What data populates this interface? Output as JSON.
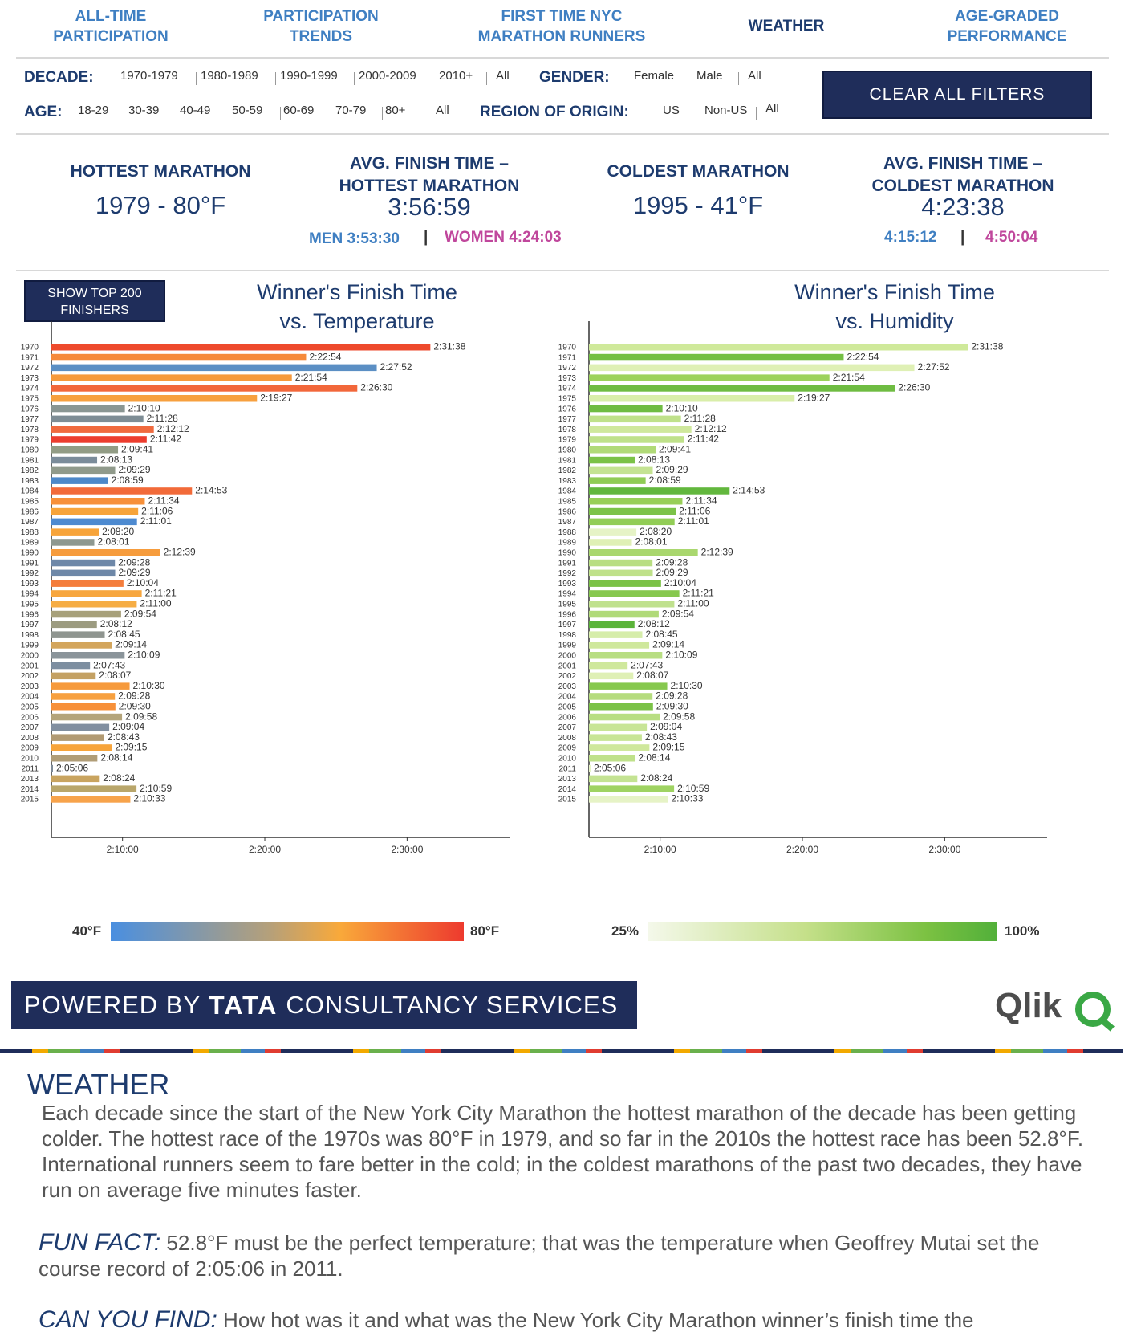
{
  "nav": [
    {
      "label": "ALL-TIME\nPARTICIPATION",
      "active": false
    },
    {
      "label": "PARTICIPATION\nTRENDS",
      "active": false
    },
    {
      "label": "FIRST TIME NYC\nMARATHON RUNNERS",
      "active": false
    },
    {
      "label": "WEATHER",
      "active": true
    },
    {
      "label": "AGE-GRADED\nPERFORMANCE",
      "active": false
    }
  ],
  "filters": {
    "decade_label": "DECADE:",
    "decade_options": [
      "1970-1979",
      "1980-1989",
      "1990-1999",
      "2000-2009",
      "2010+",
      "All"
    ],
    "gender_label": "GENDER:",
    "gender_options": [
      "Female",
      "Male",
      "All"
    ],
    "age_label": "AGE:",
    "age_options": [
      "18-29",
      "30-39",
      "40-49",
      "50-59",
      "60-69",
      "70-79",
      "80+",
      "All"
    ],
    "region_label": "REGION OF ORIGIN:",
    "region_options": [
      "US",
      "Non-US",
      "All"
    ],
    "clear_label": "CLEAR ALL FILTERS"
  },
  "stats": {
    "hottest_title": "HOTTEST MARATHON",
    "hottest_value": "1979 - 80°F",
    "avg_hot_title": "AVG. FINISH TIME –\nHOTTEST MARATHON",
    "avg_hot_value": "3:56:59",
    "avg_hot_men": "MEN 3:53:30",
    "avg_hot_women": "WOMEN 4:24:03",
    "coldest_title": "COLDEST MARATHON",
    "coldest_value": "1995 - 41°F",
    "avg_cold_title": "AVG. FINISH TIME –\nCOLDEST MARATHON",
    "avg_cold_value": "4:23:38",
    "avg_cold_men": "4:15:12",
    "avg_cold_women": "4:50:04",
    "separator": "|"
  },
  "top200_label": "SHOW TOP 200\nFINISHERS",
  "legend": {
    "temp_min": "40°F",
    "temp_max": "80°F",
    "hum_min": "25%",
    "hum_max": "100%"
  },
  "chart_data": [
    {
      "type": "bar",
      "orientation": "horizontal",
      "title": "Winner's Finish Time\nvs. Temperature",
      "categories": [
        "1970",
        "1971",
        "1972",
        "1973",
        "1974",
        "1975",
        "1976",
        "1977",
        "1978",
        "1979",
        "1980",
        "1981",
        "1982",
        "1983",
        "1984",
        "1985",
        "1986",
        "1987",
        "1988",
        "1989",
        "1990",
        "1991",
        "1992",
        "1993",
        "1994",
        "1995",
        "1996",
        "1997",
        "1998",
        "1999",
        "2000",
        "2001",
        "2002",
        "2003",
        "2004",
        "2005",
        "2006",
        "2007",
        "2008",
        "2009",
        "2010",
        "2011",
        "2013",
        "2014",
        "2015"
      ],
      "values": [
        "2:31:38",
        "2:22:54",
        "2:27:52",
        "2:21:54",
        "2:26:30",
        "2:19:27",
        "2:10:10",
        "2:11:28",
        "2:12:12",
        "2:11:42",
        "2:09:41",
        "2:08:13",
        "2:09:29",
        "2:08:59",
        "2:14:53",
        "2:11:34",
        "2:11:06",
        "2:11:01",
        "2:08:20",
        "2:08:01",
        "2:12:39",
        "2:09:28",
        "2:09:29",
        "2:10:04",
        "2:11:21",
        "2:11:00",
        "2:09:54",
        "2:08:12",
        "2:08:45",
        "2:09:14",
        "2:10:09",
        "2:07:43",
        "2:08:07",
        "2:10:30",
        "2:09:28",
        "2:09:30",
        "2:09:58",
        "2:09:04",
        "2:08:43",
        "2:09:15",
        "2:08:14",
        "2:05:06",
        "2:08:24",
        "2:10:59",
        "2:10:33"
      ],
      "bar_colors": [
        "#ee4a2c",
        "#f68a3a",
        "#5b8fc4",
        "#f69a3c",
        "#f2673a",
        "#f7a03f",
        "#8a9693",
        "#7e8d95",
        "#f06a3e",
        "#ec3d2e",
        "#929c85",
        "#7b8c9a",
        "#909a8b",
        "#4d88c9",
        "#f26a39",
        "#f79039",
        "#f7a43a",
        "#4d8ad0",
        "#f7a43a",
        "#8e9890",
        "#f69c3d",
        "#6e88a8",
        "#6e88a8",
        "#f47d3c",
        "#f7a63e",
        "#f6ad44",
        "#a7a07a",
        "#9c9b80",
        "#8f9590",
        "#d3a55c",
        "#8a949a",
        "#7d8ea0",
        "#c4a163",
        "#f69a3c",
        "#f7a03f",
        "#f79039",
        "#b4a47a",
        "#818fa0",
        "#b19a73",
        "#f7a43a",
        "#b09d77",
        "#7f8b98",
        "#c9a45f",
        "#b9a66a",
        "#f7a34b"
      ],
      "xlim": [
        "2:05:00",
        "2:35:00"
      ],
      "xticks": [
        "2:10:00",
        "2:20:00",
        "2:30:00"
      ],
      "color_legend": {
        "min": "40°F",
        "max": "80°F"
      }
    },
    {
      "type": "bar",
      "orientation": "horizontal",
      "title": "Winner's Finish Time\nvs. Humidity",
      "categories": [
        "1970",
        "1971",
        "1972",
        "1973",
        "1974",
        "1975",
        "1976",
        "1977",
        "1978",
        "1979",
        "1980",
        "1981",
        "1982",
        "1983",
        "1984",
        "1985",
        "1986",
        "1987",
        "1988",
        "1989",
        "1990",
        "1991",
        "1992",
        "1993",
        "1994",
        "1995",
        "1996",
        "1997",
        "1998",
        "1999",
        "2000",
        "2001",
        "2002",
        "2003",
        "2004",
        "2005",
        "2006",
        "2007",
        "2008",
        "2009",
        "2010",
        "2011",
        "2013",
        "2014",
        "2015"
      ],
      "values": [
        "2:31:38",
        "2:22:54",
        "2:27:52",
        "2:21:54",
        "2:26:30",
        "2:19:27",
        "2:10:10",
        "2:11:28",
        "2:12:12",
        "2:11:42",
        "2:09:41",
        "2:08:13",
        "2:09:29",
        "2:08:59",
        "2:14:53",
        "2:11:34",
        "2:11:06",
        "2:11:01",
        "2:08:20",
        "2:08:01",
        "2:12:39",
        "2:09:28",
        "2:09:29",
        "2:10:04",
        "2:11:21",
        "2:11:00",
        "2:09:54",
        "2:08:12",
        "2:08:45",
        "2:09:14",
        "2:10:09",
        "2:07:43",
        "2:08:07",
        "2:10:30",
        "2:09:28",
        "2:09:30",
        "2:09:58",
        "2:09:04",
        "2:08:43",
        "2:09:15",
        "2:08:14",
        "2:05:06",
        "2:08:24",
        "2:10:59",
        "2:10:33"
      ],
      "bar_colors": [
        "#cfe99a",
        "#74bf44",
        "#dff0b5",
        "#9cd25a",
        "#6fbc42",
        "#d9eeaa",
        "#6fbc42",
        "#bfe18a",
        "#cfe89c",
        "#bfe18a",
        "#b1da78",
        "#7bc247",
        "#c4e392",
        "#90cc55",
        "#62b73d",
        "#98cf58",
        "#7cc348",
        "#92cd56",
        "#e6f3c6",
        "#dff0b5",
        "#a9d76e",
        "#b8de82",
        "#bfe18a",
        "#7bc247",
        "#86c84e",
        "#c0e18e",
        "#b0da78",
        "#5bb43a",
        "#d6edaa",
        "#cfe89c",
        "#b8de82",
        "#cfe89c",
        "#dff0b5",
        "#86c84e",
        "#b5dc7e",
        "#7bc247",
        "#b8de82",
        "#c8e596",
        "#c8e596",
        "#cfe89c",
        "#bfe18a",
        "#e6f3c6",
        "#c4e392",
        "#9fd362",
        "#e6f3c6"
      ],
      "xlim": [
        "2:05:00",
        "2:35:00"
      ],
      "xticks": [
        "2:10:00",
        "2:20:00",
        "2:30:00"
      ],
      "color_legend": {
        "min": "25%",
        "max": "100%"
      }
    }
  ],
  "footer": {
    "powered_prefix": "POWERED BY",
    "powered_brand": "TATA",
    "powered_suffix": "CONSULTANCY SERVICES",
    "qlik": "Qlik"
  },
  "article": {
    "title": "WEATHER",
    "p1": "Each decade since the start of the New York City Marathon the hottest marathon of the decade has been getting colder. The hottest race of the 1970s was 80°F in 1979, and so far in the 2010s the hottest race has been 52.8°F. International runners seem to fare better in the cold; in the coldest marathons of the past two decades, they have run on average five minutes faster.",
    "fun_label": "FUN FACT:",
    "fun_text": " 52.8°F must be the perfect temperature; that was the temperature when Geoffrey Mutai set the course record of 2:05:06 in 2011.",
    "find_label": "CAN YOU FIND:",
    "find_text": " How hot was it and what was the New York City Marathon winner’s finish time the"
  }
}
